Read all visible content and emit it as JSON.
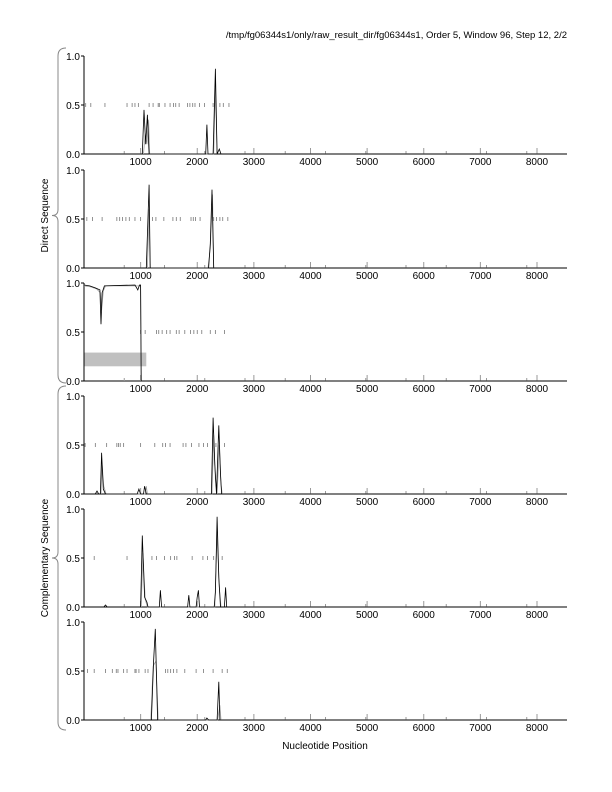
{
  "chart_data": {
    "type": "line",
    "title": "/tmp/fg06344s1/only/raw_result_dir/fg06344s1, Order 5, Window 96, Step 12, 2/2",
    "xlabel": "Nucleotide Position",
    "xlim": [
      0,
      8530
    ],
    "ylim": [
      0,
      1
    ],
    "xticks": [
      "1000",
      "2000",
      "3000",
      "4000",
      "5000",
      "6000",
      "7000",
      "8000"
    ],
    "yticks": [
      "0.0",
      "0.5",
      "1.0"
    ],
    "grid": false,
    "colors": {
      "primary": "#000000",
      "secondary": "#a0a0a0",
      "box": "#c0c0c0"
    },
    "groups": [
      {
        "label": "Direct Sequence",
        "panels": [
          0,
          1,
          2
        ]
      },
      {
        "label": "Complementary Sequence",
        "panels": [
          3,
          4,
          5
        ]
      }
    ],
    "panels": [
      {
        "stops": [
          30,
          120,
          370,
          760,
          850,
          900,
          960,
          1150,
          1220,
          1310,
          1330,
          1430,
          1520,
          1580,
          1620,
          1680,
          1830,
          1870,
          1920,
          1960,
          2040,
          2130,
          2280,
          2400,
          2460,
          2560
        ],
        "series": [
          {
            "values": [
              [
                0,
                0
              ],
              [
                1030,
                0
              ],
              [
                1060,
                0.45
              ],
              [
                1090,
                0.1
              ],
              [
                1120,
                0.4
              ],
              [
                1150,
                0
              ],
              [
                2150,
                0
              ],
              [
                2170,
                0.3
              ],
              [
                2190,
                0
              ],
              [
                2280,
                0
              ],
              [
                2320,
                0.87
              ],
              [
                2350,
                0
              ],
              [
                2390,
                0.05
              ],
              [
                2420,
                0
              ],
              [
                8530,
                0
              ]
            ]
          },
          {
            "values": [
              [
                1050,
                0
              ],
              [
                1080,
                0.2
              ],
              [
                1110,
                0.1
              ],
              [
                1140,
                0.35
              ],
              [
                1160,
                0
              ],
              [
                2290,
                0
              ],
              [
                2320,
                0.7
              ],
              [
                2350,
                0
              ]
            ]
          }
        ]
      },
      {
        "stops": [
          50,
          150,
          320,
          580,
          630,
          680,
          740,
          800,
          900,
          1000,
          1210,
          1270,
          1410,
          1570,
          1630,
          1700,
          1890,
          1930,
          1970,
          2050,
          2290,
          2340,
          2400,
          2450,
          2540
        ],
        "series": [
          {
            "values": [
              [
                0,
                0
              ],
              [
                1100,
                0
              ],
              [
                1150,
                0.85
              ],
              [
                1170,
                0
              ],
              [
                2200,
                0
              ],
              [
                2230,
                0.25
              ],
              [
                2260,
                0.8
              ],
              [
                2290,
                0
              ],
              [
                8530,
                0
              ]
            ]
          },
          {
            "values": [
              [
                1120,
                0
              ],
              [
                1150,
                0.6
              ],
              [
                1170,
                0
              ],
              [
                2190,
                0
              ],
              [
                2230,
                0.2
              ],
              [
                2270,
                0.75
              ],
              [
                2290,
                0
              ]
            ]
          }
        ]
      },
      {
        "stops": [
          1000,
          1080,
          1280,
          1320,
          1380,
          1460,
          1520,
          1630,
          1680,
          1780,
          1880,
          1940,
          2000,
          2080,
          2230,
          2320,
          2480
        ],
        "box": [
          0,
          1100,
          0.15,
          0.29
        ],
        "series": [
          {
            "values": [
              [
                0,
                0.98
              ],
              [
                100,
                0.97
              ],
              [
                200,
                0.95
              ],
              [
                280,
                0.93
              ],
              [
                300,
                0.58
              ],
              [
                320,
                0.9
              ],
              [
                360,
                0.97
              ],
              [
                900,
                0.98
              ],
              [
                950,
                0.93
              ],
              [
                980,
                0.98
              ],
              [
                1000,
                0.98
              ],
              [
                1010,
                0
              ],
              [
                8530,
                0
              ]
            ]
          },
          {
            "values": [
              [
                0,
                0.97
              ],
              [
                120,
                0.96
              ],
              [
                220,
                0.94
              ],
              [
                290,
                0.9
              ],
              [
                310,
                0.72
              ],
              [
                340,
                0.92
              ],
              [
                380,
                0.97
              ],
              [
                940,
                0.97
              ],
              [
                1000,
                0.97
              ],
              [
                1010,
                0
              ]
            ]
          }
        ]
      },
      {
        "stops": [
          20,
          200,
          400,
          580,
          610,
          640,
          700,
          1000,
          1250,
          1390,
          1440,
          1520,
          1750,
          1800,
          1900,
          2030,
          2110,
          2180,
          2330,
          2480
        ],
        "series": [
          {
            "values": [
              [
                0,
                0
              ],
              [
                200,
                0
              ],
              [
                230,
                0.03
              ],
              [
                260,
                0
              ],
              [
                290,
                0
              ],
              [
                310,
                0.42
              ],
              [
                340,
                0.05
              ],
              [
                380,
                0
              ],
              [
                940,
                0
              ],
              [
                970,
                0.05
              ],
              [
                1000,
                0
              ],
              [
                1050,
                0
              ],
              [
                1070,
                0.08
              ],
              [
                1100,
                0
              ],
              [
                2250,
                0
              ],
              [
                2280,
                0.78
              ],
              [
                2310,
                0.3
              ],
              [
                2340,
                0
              ],
              [
                2380,
                0.7
              ],
              [
                2410,
                0.2
              ],
              [
                2430,
                0
              ],
              [
                8530,
                0
              ]
            ]
          },
          {
            "values": [
              [
                300,
                0
              ],
              [
                320,
                0.3
              ],
              [
                350,
                0.08
              ],
              [
                390,
                0
              ],
              [
                1080,
                0
              ],
              [
                1100,
                0.08
              ],
              [
                1120,
                0
              ],
              [
                2260,
                0
              ],
              [
                2290,
                0.6
              ],
              [
                2320,
                0.15
              ],
              [
                2350,
                0
              ],
              [
                2390,
                0.5
              ],
              [
                2420,
                0.1
              ],
              [
                2440,
                0
              ]
            ]
          }
        ]
      },
      {
        "stops": [
          180,
          760,
          1200,
          1280,
          1420,
          1530,
          1600,
          1640,
          1910,
          2100,
          2180,
          2290,
          2440
        ],
        "series": [
          {
            "values": [
              [
                0,
                0
              ],
              [
                350,
                0
              ],
              [
                380,
                0.02
              ],
              [
                410,
                0
              ],
              [
                1000,
                0
              ],
              [
                1030,
                0.73
              ],
              [
                1070,
                0.1
              ],
              [
                1110,
                0.05
              ],
              [
                1130,
                0
              ],
              [
                1330,
                0
              ],
              [
                1350,
                0.17
              ],
              [
                1370,
                0
              ],
              [
                1830,
                0
              ],
              [
                1850,
                0.12
              ],
              [
                1870,
                0
              ],
              [
                1980,
                0
              ],
              [
                2000,
                0.1
              ],
              [
                2020,
                0.17
              ],
              [
                2040,
                0
              ],
              [
                2300,
                0
              ],
              [
                2320,
                0.15
              ],
              [
                2350,
                0.92
              ],
              [
                2380,
                0.3
              ],
              [
                2410,
                0
              ],
              [
                2480,
                0
              ],
              [
                2500,
                0.2
              ],
              [
                2520,
                0
              ],
              [
                8530,
                0
              ]
            ]
          },
          {
            "values": [
              [
                1010,
                0
              ],
              [
                1040,
                0.55
              ],
              [
                1080,
                0.08
              ],
              [
                1120,
                0
              ],
              [
                2310,
                0
              ],
              [
                2350,
                0.75
              ],
              [
                2390,
                0.2
              ],
              [
                2420,
                0
              ]
            ]
          }
        ]
      },
      {
        "stops": [
          60,
          180,
          380,
          500,
          570,
          600,
          700,
          760,
          900,
          920,
          970,
          1080,
          1130,
          1440,
          1480,
          1530,
          1580,
          1640,
          1780,
          1980,
          2110,
          2280,
          2440,
          2530
        ],
        "series": [
          {
            "values": [
              [
                0,
                0
              ],
              [
                1190,
                0
              ],
              [
                1230,
                0.6
              ],
              [
                1260,
                0.93
              ],
              [
                1300,
                0
              ],
              [
                2150,
                0
              ],
              [
                2170,
                0.02
              ],
              [
                2200,
                0
              ],
              [
                2350,
                0
              ],
              [
                2380,
                0.39
              ],
              [
                2400,
                0
              ],
              [
                8530,
                0
              ]
            ]
          },
          {
            "values": [
              [
                1180,
                0
              ],
              [
                1220,
                0.55
              ],
              [
                1270,
                0.6
              ],
              [
                1310,
                0
              ],
              [
                2360,
                0
              ],
              [
                2400,
                0.15
              ],
              [
                2420,
                0
              ]
            ]
          }
        ]
      }
    ]
  }
}
